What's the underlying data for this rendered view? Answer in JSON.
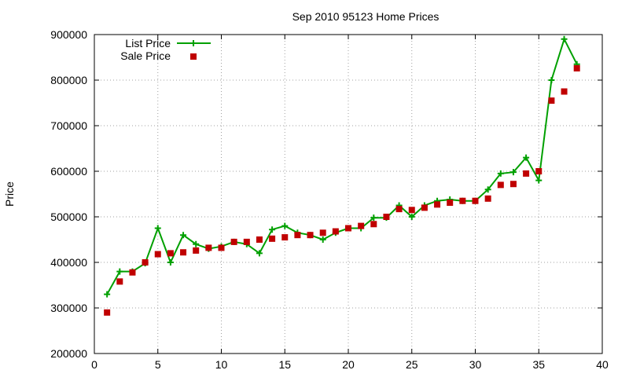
{
  "chart_data": {
    "type": "line",
    "title": "Sep 2010 95123 Home Prices",
    "xlabel": "",
    "ylabel": "Price",
    "xlim": [
      0,
      40
    ],
    "ylim": [
      200000,
      900000
    ],
    "xticks": [
      0,
      5,
      10,
      15,
      20,
      25,
      30,
      35,
      40
    ],
    "yticks": [
      200000,
      300000,
      400000,
      500000,
      600000,
      700000,
      800000,
      900000
    ],
    "grid": true,
    "legend_position": "top-left",
    "series": [
      {
        "name": "List Price",
        "style": "line+cross",
        "color": "#00a000",
        "x": [
          1,
          2,
          3,
          4,
          5,
          6,
          7,
          8,
          9,
          10,
          11,
          12,
          13,
          14,
          15,
          16,
          17,
          18,
          19,
          20,
          21,
          22,
          23,
          24,
          25,
          26,
          27,
          28,
          29,
          30,
          31,
          32,
          33,
          34,
          35,
          36,
          37,
          38
        ],
        "values": [
          330000,
          380000,
          380000,
          398000,
          475000,
          400000,
          460000,
          440000,
          430000,
          435000,
          445000,
          440000,
          420000,
          472000,
          480000,
          465000,
          460000,
          450000,
          465000,
          475000,
          475000,
          498000,
          498000,
          525000,
          500000,
          525000,
          535000,
          538000,
          535000,
          535000,
          560000,
          595000,
          598000,
          630000,
          580000,
          800000,
          890000,
          835000
        ]
      },
      {
        "name": "Sale Price",
        "style": "square-points",
        "color": "#c00000",
        "x": [
          1,
          2,
          3,
          4,
          5,
          6,
          7,
          8,
          9,
          10,
          11,
          12,
          13,
          14,
          15,
          16,
          17,
          18,
          19,
          20,
          21,
          22,
          23,
          24,
          25,
          26,
          27,
          28,
          29,
          30,
          31,
          32,
          33,
          34,
          35,
          36,
          37,
          38
        ],
        "values": [
          290000,
          358000,
          378000,
          400000,
          418000,
          420000,
          422000,
          426000,
          432000,
          432000,
          445000,
          445000,
          450000,
          452000,
          455000,
          460000,
          460000,
          465000,
          468000,
          475000,
          480000,
          484000,
          500000,
          517000,
          515000,
          520000,
          527000,
          531000,
          535000,
          535000,
          540000,
          570000,
          572000,
          595000,
          600000,
          755000,
          775000,
          826000
        ]
      }
    ]
  }
}
